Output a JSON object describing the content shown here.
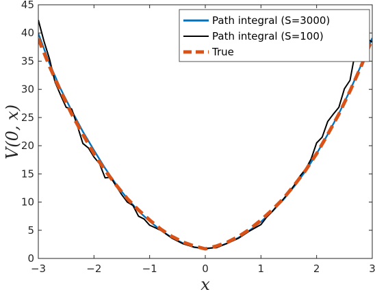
{
  "chart_data": {
    "type": "line",
    "title": "",
    "xlabel": "x",
    "ylabel": "V(0, x)",
    "xlim": [
      -3,
      3
    ],
    "ylim": [
      0,
      45
    ],
    "xticks": [
      -3,
      -2,
      -1,
      0,
      1,
      2,
      3
    ],
    "yticks": [
      0,
      5,
      10,
      15,
      20,
      25,
      30,
      35,
      40,
      45
    ],
    "xtick_labels": [
      "−3",
      "−2",
      "−1",
      "0",
      "1",
      "2",
      "3"
    ],
    "ytick_labels": [
      "0",
      "5",
      "10",
      "15",
      "20",
      "25",
      "30",
      "35",
      "40",
      "45"
    ],
    "grid": false,
    "legend_position": "top-right",
    "series": [
      {
        "name": "Path integral (S=3000)",
        "color": "#0072BD",
        "style": "solid",
        "x": [
          -3,
          -2.8,
          -2.6,
          -2.4,
          -2.2,
          -2,
          -1.8,
          -1.6,
          -1.4,
          -1.2,
          -1,
          -0.8,
          -0.6,
          -0.4,
          -0.2,
          0,
          0.2,
          0.4,
          0.6,
          0.8,
          1,
          1.2,
          1.4,
          1.6,
          1.8,
          2,
          2.2,
          2.4,
          2.6,
          2.8,
          3
        ],
        "y": [
          39.9,
          34.6,
          30.1,
          26.2,
          22.5,
          19.2,
          16.0,
          13.1,
          10.6,
          8.4,
          6.6,
          5.0,
          3.7,
          2.7,
          2.0,
          1.7,
          2.0,
          2.7,
          3.7,
          5.0,
          6.5,
          8.3,
          10.4,
          12.8,
          15.5,
          18.6,
          22.0,
          25.7,
          29.8,
          34.3,
          39.1
        ]
      },
      {
        "name": "Path integral (S=100)",
        "color": "#000000",
        "style": "solid",
        "x": [
          -3,
          -2.9,
          -2.8,
          -2.7,
          -2.6,
          -2.5,
          -2.4,
          -2.3,
          -2.2,
          -2.1,
          -2,
          -1.9,
          -1.8,
          -1.7,
          -1.6,
          -1.5,
          -1.4,
          -1.3,
          -1.2,
          -1.1,
          -1,
          -0.8,
          -0.6,
          -0.4,
          -0.2,
          0,
          0.2,
          0.4,
          0.6,
          0.8,
          1,
          1.1,
          1.2,
          1.3,
          1.4,
          1.5,
          1.6,
          1.7,
          1.8,
          1.9,
          2,
          2.1,
          2.2,
          2.3,
          2.4,
          2.5,
          2.6,
          2.7,
          2.8,
          2.9,
          3
        ],
        "y": [
          42.3,
          38.6,
          35.4,
          31.3,
          29.0,
          26.8,
          26.5,
          23.6,
          20.4,
          19.6,
          18.0,
          16.8,
          14.3,
          14.4,
          12.8,
          11.3,
          10.0,
          9.4,
          7.5,
          7.0,
          5.9,
          5.0,
          3.6,
          2.6,
          2.0,
          1.8,
          1.9,
          2.7,
          3.6,
          4.9,
          6.0,
          7.3,
          8.3,
          9.5,
          10.5,
          11.7,
          13.0,
          14.6,
          15.8,
          17.6,
          20.5,
          21.5,
          24.3,
          25.6,
          26.8,
          30.1,
          31.6,
          36.9,
          39.5,
          39.0,
          38.4
        ]
      },
      {
        "name": "True",
        "color": "#D95319",
        "style": "dashed",
        "x": [
          -3,
          -2.8,
          -2.6,
          -2.4,
          -2.2,
          -2,
          -1.8,
          -1.6,
          -1.4,
          -1.2,
          -1,
          -0.8,
          -0.6,
          -0.4,
          -0.2,
          0,
          0.2,
          0.4,
          0.6,
          0.8,
          1,
          1.2,
          1.4,
          1.6,
          1.8,
          2,
          2.2,
          2.4,
          2.6,
          2.8,
          3
        ],
        "y": [
          39.0,
          34.1,
          29.7,
          25.6,
          22.0,
          18.6,
          15.6,
          13.0,
          10.6,
          8.6,
          6.8,
          5.2,
          3.9,
          2.9,
          2.2,
          1.7,
          2.2,
          2.9,
          3.9,
          5.2,
          6.8,
          8.6,
          10.6,
          13.0,
          15.6,
          18.6,
          22.0,
          25.6,
          29.7,
          34.1,
          39.0
        ]
      }
    ]
  }
}
